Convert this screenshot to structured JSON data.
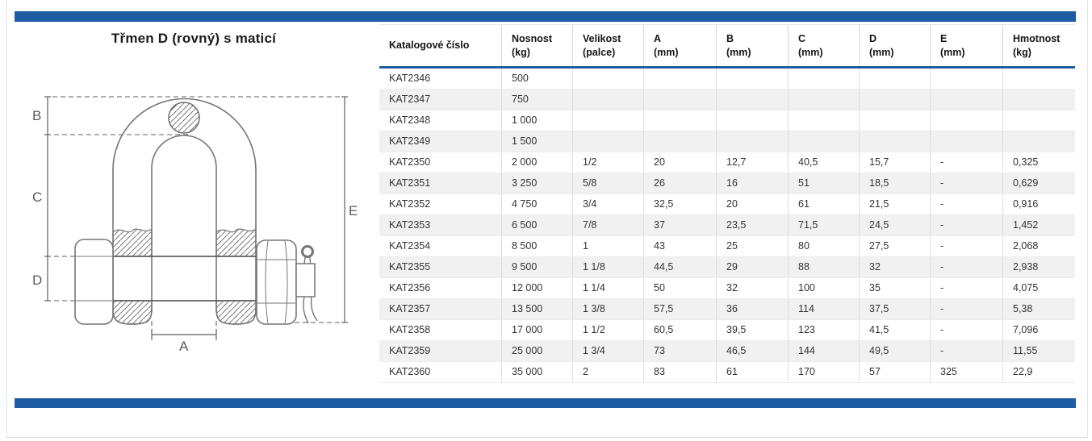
{
  "page": {
    "title": "Třmen D (rovný) s maticí"
  },
  "colors": {
    "accent_blue": "#1e5da3",
    "row_alternate": "#f1f1f1",
    "table_text": "#333333"
  },
  "drawing": {
    "description": "technical line drawing of a D-shackle with bolt, nut and cotter pin",
    "labels": {
      "a": "A",
      "b": "B",
      "c": "C",
      "d": "D",
      "e": "E"
    }
  },
  "table": {
    "columns": [
      {
        "label": "Katalogové číslo",
        "sub": ""
      },
      {
        "label": "Nosnost",
        "sub": "(kg)"
      },
      {
        "label": "Velikost",
        "sub": "(palce)"
      },
      {
        "label": "A",
        "sub": "(mm)"
      },
      {
        "label": "B",
        "sub": "(mm)"
      },
      {
        "label": "C",
        "sub": "(mm)"
      },
      {
        "label": "D",
        "sub": "(mm)"
      },
      {
        "label": "E",
        "sub": "(mm)"
      },
      {
        "label": "Hmotnost",
        "sub": "(kg)"
      }
    ],
    "rows": [
      [
        "KAT2346",
        "500",
        "",
        "",
        "",
        "",
        "",
        "",
        ""
      ],
      [
        "KAT2347",
        "750",
        "",
        "",
        "",
        "",
        "",
        "",
        ""
      ],
      [
        "KAT2348",
        "1 000",
        "",
        "",
        "",
        "",
        "",
        "",
        ""
      ],
      [
        "KAT2349",
        "1 500",
        "",
        "",
        "",
        "",
        "",
        "",
        ""
      ],
      [
        "KAT2350",
        "2 000",
        "1/2",
        "20",
        "12,7",
        "40,5",
        "15,7",
        "-",
        "0,325"
      ],
      [
        "KAT2351",
        "3 250",
        "5/8",
        "26",
        "16",
        "51",
        "18,5",
        "-",
        "0,629"
      ],
      [
        "KAT2352",
        "4 750",
        "3/4",
        "32,5",
        "20",
        "61",
        "21,5",
        "-",
        "0,916"
      ],
      [
        "KAT2353",
        "6 500",
        "7/8",
        "37",
        "23,5",
        "71,5",
        "24,5",
        "-",
        "1,452"
      ],
      [
        "KAT2354",
        "8 500",
        "1",
        "43",
        "25",
        "80",
        "27,5",
        "-",
        "2,068"
      ],
      [
        "KAT2355",
        "9 500",
        "1 1/8",
        "44,5",
        "29",
        "88",
        "32",
        "-",
        "2,938"
      ],
      [
        "KAT2356",
        "12 000",
        "1 1/4",
        "50",
        "32",
        "100",
        "35",
        "-",
        "4,075"
      ],
      [
        "KAT2357",
        "13 500",
        "1 3/8",
        "57,5",
        "36",
        "114",
        "37,5",
        "-",
        "5,38"
      ],
      [
        "KAT2358",
        "17 000",
        "1 1/2",
        "60,5",
        "39,5",
        "123",
        "41,5",
        "-",
        "7,096"
      ],
      [
        "KAT2359",
        "25 000",
        "1 3/4",
        "73",
        "46,5",
        "144",
        "49,5",
        "-",
        "11,55"
      ],
      [
        "KAT2360",
        "35 000",
        "2",
        "83",
        "61",
        "170",
        "57",
        "325",
        "22,9"
      ]
    ]
  }
}
